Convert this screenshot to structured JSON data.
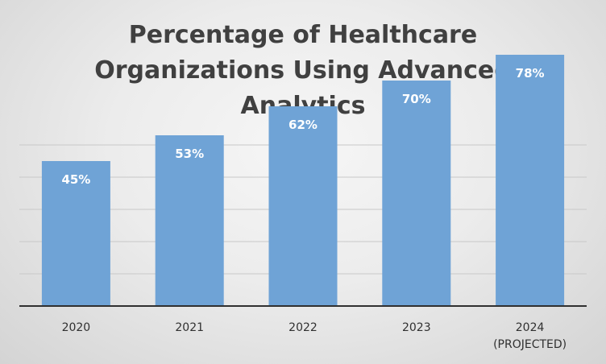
{
  "chart_data": {
    "type": "bar",
    "title_lines": [
      "Percentage of Healthcare",
      "Organizations Using Advanced",
      "Analytics"
    ],
    "categories": [
      [
        "2020"
      ],
      [
        "2021"
      ],
      [
        "2022"
      ],
      [
        "2023"
      ],
      [
        "2024",
        "(PROJECTED)"
      ]
    ],
    "values": [
      45,
      53,
      62,
      70,
      78
    ],
    "data_labels": [
      "45%",
      "53%",
      "62%",
      "70%",
      "78%"
    ],
    "ylim": [
      0,
      100
    ],
    "grid": true,
    "legend": "none",
    "bar_color": "#6fa3d6"
  }
}
